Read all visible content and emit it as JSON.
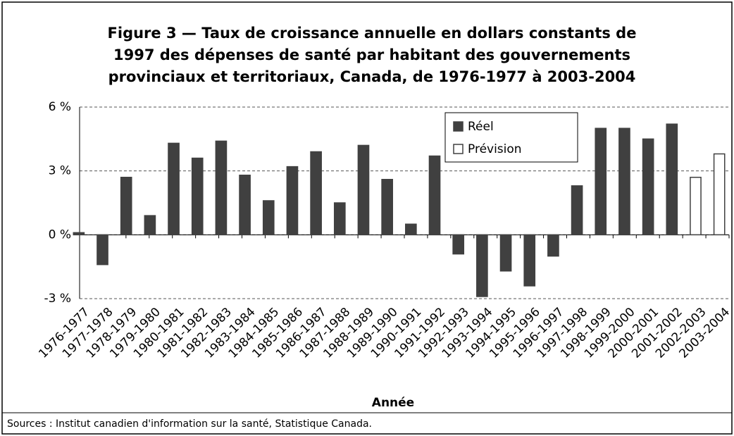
{
  "chart_data": {
    "type": "bar",
    "title": [
      "Figure 3 — Taux de croissance annuelle en dollars constants de",
      "1997 des dépenses de santé par habitant des gouvernements",
      "provinciaux et territoriaux, Canada, de 1976-1977 à 2003-2004"
    ],
    "x_label": "Année",
    "source": "Sources : Institut canadien d'information sur la santé, Statistique Canada.",
    "categories": [
      "1976-1977",
      "1977-1978",
      "1978-1979",
      "1979-1980",
      "1980-1981",
      "1981-1982",
      "1982-1983",
      "1983-1984",
      "1984-1985",
      "1985-1986",
      "1986-1987",
      "1987-1988",
      "1988-1989",
      "1989-1990",
      "1990-1991",
      "1991-1992",
      "1992-1993",
      "1993-1994",
      "1994-1995",
      "1995-1996",
      "1996-1997",
      "1997-1998",
      "1998-1999",
      "1999-2000",
      "2000-2001",
      "2001-2002",
      "2002-2003",
      "2003-2004"
    ],
    "series": [
      {
        "name": "Réel",
        "color": "#404040",
        "values": [
          0.1,
          -1.4,
          2.7,
          0.9,
          4.3,
          3.6,
          4.4,
          2.8,
          1.6,
          3.2,
          3.9,
          1.5,
          4.2,
          2.6,
          0.5,
          3.7,
          -0.9,
          -2.9,
          -1.7,
          -2.4,
          -1.0,
          2.3,
          5.0,
          5.0,
          4.5,
          5.2,
          null,
          null
        ]
      },
      {
        "name": "Prévision",
        "color": "#ffffff",
        "values": [
          null,
          null,
          null,
          null,
          null,
          null,
          null,
          null,
          null,
          null,
          null,
          null,
          null,
          null,
          null,
          null,
          null,
          null,
          null,
          null,
          null,
          null,
          null,
          null,
          null,
          null,
          2.7,
          3.8
        ]
      }
    ],
    "edge_color": "#404040",
    "ylim": [
      -3,
      6
    ],
    "yticks": [
      {
        "value": -3,
        "label": "-3 %"
      },
      {
        "value": 0,
        "label": "0 %"
      },
      {
        "value": 3,
        "label": "3 %"
      },
      {
        "value": 6,
        "label": "6 %"
      }
    ],
    "grid": true,
    "legend_loc": "upper right"
  }
}
